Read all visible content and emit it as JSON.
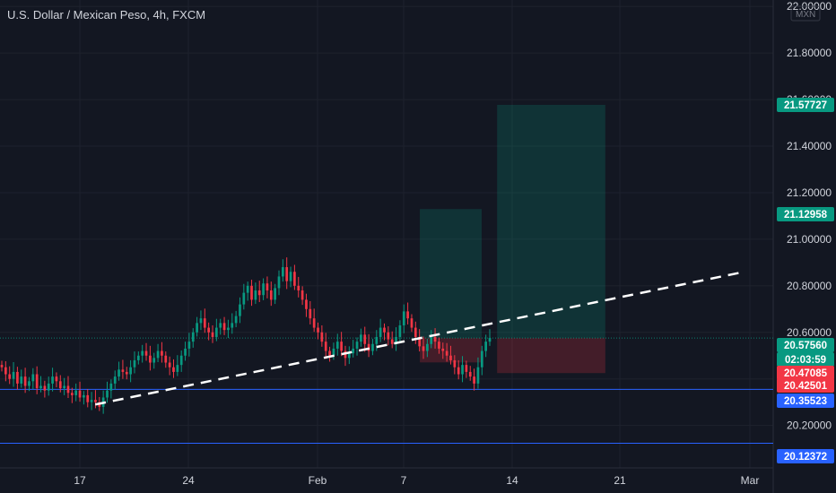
{
  "header": {
    "title": "U.S. Dollar / Mexican Peso, 4h, FXCM"
  },
  "chart_data": {
    "type": "candlestick",
    "symbol_title": "U.S. Dollar / Mexican Peso, 4h, FXCM",
    "currency": "MXN",
    "y_ticks": [
      "22.00000",
      "21.80000",
      "21.60000",
      "21.40000",
      "21.20000",
      "21.00000",
      "20.80000",
      "20.60000",
      "20.40000",
      "20.20000"
    ],
    "x_ticks": [
      "17",
      "24",
      "Feb",
      "7",
      "14",
      "21",
      "Mar"
    ],
    "ylim": [
      20.06,
      22.02
    ],
    "price_labels": [
      {
        "text": "21.57727",
        "color": "#089981"
      },
      {
        "text": "21.12958",
        "color": "#089981"
      },
      {
        "text": "20.57560",
        "color": "#089981"
      },
      {
        "text": "02:03:59",
        "color": "#089981"
      },
      {
        "text": "20.47085",
        "color": "#f23645"
      },
      {
        "text": "20.42501",
        "color": "#f23645"
      },
      {
        "text": "20.35523",
        "color": "#2962ff"
      },
      {
        "text": "20.12372",
        "color": "#2962ff"
      }
    ],
    "horizontal_levels": [
      20.35523,
      20.12372
    ],
    "current_price": 20.5756,
    "trendline": [
      {
        "date": "Jan 18",
        "price": 20.29
      },
      {
        "date": "Feb 29",
        "price": 20.86
      }
    ],
    "positions": [
      {
        "from": "Feb 8",
        "to": "Feb 12",
        "entry": 20.5756,
        "target": 21.12958,
        "stop": 20.47085
      },
      {
        "from": "Feb 13",
        "to": "Feb 20",
        "entry": 20.5756,
        "target": 21.57727,
        "stop": 20.42501
      }
    ],
    "colors": {
      "up": "#089981",
      "down": "#f23645",
      "grid": "#1e222d",
      "text": "#d1d4dc",
      "level": "#2962ff"
    },
    "closes": [
      20.45,
      20.42,
      20.4,
      20.43,
      20.38,
      20.41,
      20.37,
      20.39,
      20.42,
      20.36,
      20.37,
      20.35,
      20.38,
      20.41,
      20.39,
      20.36,
      20.37,
      20.34,
      20.33,
      20.35,
      20.32,
      20.33,
      20.3,
      20.31,
      20.3,
      20.28,
      20.32,
      20.35,
      20.38,
      20.41,
      20.44,
      20.43,
      20.42,
      20.45,
      20.48,
      20.5,
      20.52,
      20.5,
      20.47,
      20.49,
      20.52,
      20.5,
      20.47,
      20.45,
      20.43,
      20.46,
      20.5,
      20.53,
      20.56,
      20.6,
      20.64,
      20.66,
      20.62,
      20.6,
      20.58,
      20.62,
      20.64,
      20.61,
      20.62,
      20.64,
      20.67,
      20.72,
      20.77,
      20.8,
      20.74,
      20.78,
      20.76,
      20.81,
      20.78,
      20.74,
      20.79,
      20.84,
      20.88,
      20.82,
      20.86,
      20.8,
      20.78,
      20.74,
      20.7,
      20.66,
      20.62,
      20.6,
      20.56,
      20.52,
      20.5,
      20.53,
      20.56,
      20.52,
      20.49,
      20.51,
      20.53,
      20.56,
      20.59,
      20.55,
      20.52,
      20.55,
      20.58,
      20.62,
      20.6,
      20.57,
      20.55,
      20.58,
      20.63,
      20.69,
      20.66,
      20.62,
      20.58,
      20.54,
      20.52,
      20.55,
      20.58,
      20.56,
      20.53,
      20.52,
      20.5,
      20.48,
      20.45,
      20.42,
      20.46,
      20.43,
      20.41,
      20.38,
      20.45,
      20.52,
      20.56,
      20.5756
    ]
  }
}
